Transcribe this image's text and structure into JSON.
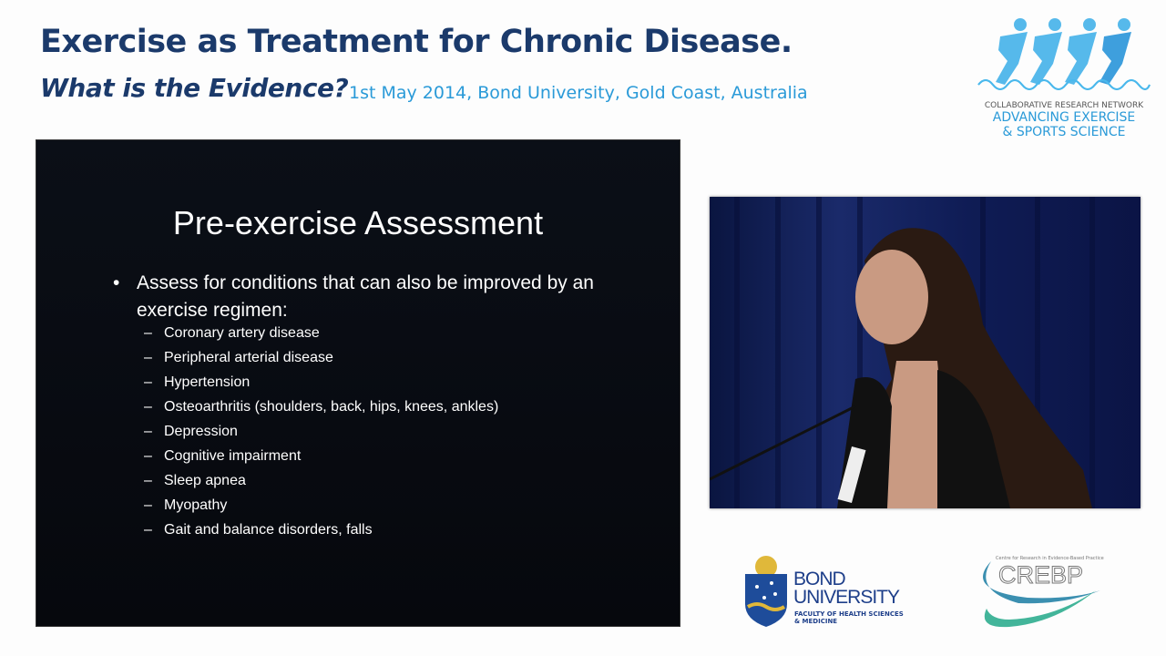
{
  "header": {
    "title": "Exercise as Treatment for Chronic Disease.",
    "subtitle": "What is the Evidence?",
    "dateline": "1st May 2014, Bond University, Gold Coast, Australia"
  },
  "logos": {
    "crn": {
      "line1": "COLLABORATIVE RESEARCH NETWORK",
      "line2": "ADVANCING EXERCISE",
      "line3": "& SPORTS SCIENCE"
    },
    "bond": {
      "name1": "BOND",
      "name2": "UNIVERSITY",
      "faculty1": "FACULTY OF HEALTH SCIENCES",
      "faculty2": "& MEDICINE"
    },
    "crebp": {
      "tagline": "Centre for Research in Evidence-Based Practice",
      "name": "CREBP"
    }
  },
  "slide": {
    "title": "Pre-exercise Assessment",
    "bullet": "Assess for conditions that can also be improved by an exercise regimen:",
    "items": [
      "Coronary artery disease",
      "Peripheral arterial disease",
      "Hypertension",
      "Osteoarthritis (shoulders, back, hips, knees, ankles)",
      "Depression",
      "Cognitive impairment",
      "Sleep apnea",
      "Myopathy",
      "Gait and balance disorders, falls"
    ]
  },
  "colors": {
    "navy": "#1b3a6b",
    "accent": "#2a9ad8",
    "slide_bg": "#0b0f17"
  }
}
